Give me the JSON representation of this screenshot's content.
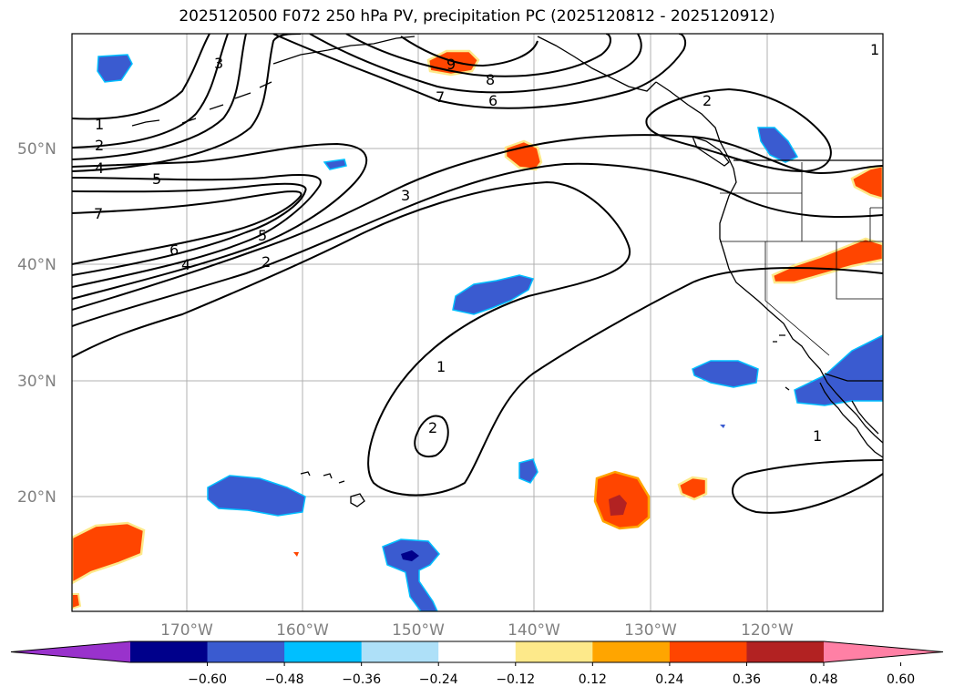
{
  "title": "2025120500 F072 250 hPa PV, precipitation PC (2025120812 - 2025120912)",
  "lat_labels": [
    "50°N",
    "40°N",
    "30°N",
    "20°N"
  ],
  "lon_labels": [
    "170°W",
    "160°W",
    "150°W",
    "140°W",
    "130°W",
    "120°W"
  ],
  "colorbar": {
    "ticks": [
      "−0.60",
      "−0.48",
      "−0.36",
      "−0.24",
      "−0.12",
      "0.12",
      "0.24",
      "0.36",
      "0.48",
      "0.60"
    ],
    "colors": [
      "#9932cc",
      "#00008b",
      "#3a5bd0",
      "#00bfff",
      "#aee0f8",
      "#ffffff",
      "#fde98a",
      "#ffa500",
      "#ff4500",
      "#b22222",
      "#ff80a5"
    ]
  },
  "contour_labels": [
    "1",
    "2",
    "3",
    "4",
    "5",
    "6",
    "7",
    "8",
    "9"
  ],
  "precip_colors": {
    "negative_strong": "#00008b",
    "negative": "#3a5bd0",
    "negative_edge": "#00bfff",
    "positive": "#ff4500",
    "positive_strong": "#b22222",
    "positive_edge": "#ffa500",
    "positive_halo": "#fde98a"
  }
}
